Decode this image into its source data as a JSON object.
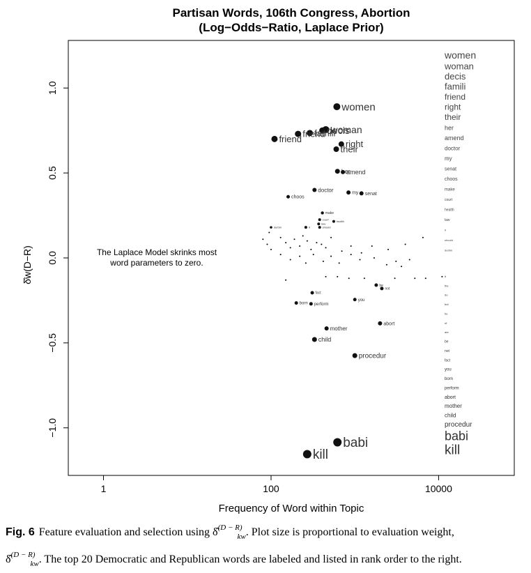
{
  "chart_data": {
    "type": "scatter",
    "title_line1": "Partisan Words, 106th Congress,  Abortion",
    "title_line2": "(Log−Odds−Ratio, Laplace Prior)",
    "xlabel": "Frequency of Word within Topic",
    "ylabel": "δ̂w(D−R)",
    "x_scale": "log",
    "x_ticks": [
      1,
      100,
      10000
    ],
    "x_tick_labels": [
      "1",
      "100",
      "10000"
    ],
    "y_ticks": [
      1.0,
      0.5,
      0.0,
      -0.5,
      -1.0
    ],
    "y_tick_labels": [
      "1.0",
      "0.5",
      "0.0",
      "−0.5",
      "−1.0"
    ],
    "xlim": [
      0.38,
      80000
    ],
    "ylim": [
      -1.28,
      1.28
    ],
    "annotation": [
      "The Laplace Model skrinks most",
      "word parameters to zero."
    ],
    "points": [
      {
        "word": "women",
        "x": 610,
        "y": 0.89,
        "size": 5,
        "font": 15
      },
      {
        "word": "woman",
        "x": 450,
        "y": 0.755,
        "size": 5,
        "font": 14
      },
      {
        "word": "decis",
        "x": 410,
        "y": 0.75,
        "size": 4.5,
        "font": 14
      },
      {
        "word": "famili",
        "x": 290,
        "y": 0.735,
        "size": 4.5,
        "font": 13
      },
      {
        "word": "friend",
        "x": 210,
        "y": 0.73,
        "size": 4.5,
        "font": 13
      },
      {
        "word": "friend",
        "x": 110,
        "y": 0.7,
        "size": 4.5,
        "font": 13
      },
      {
        "word": "right",
        "x": 690,
        "y": 0.67,
        "size": 4,
        "font": 13
      },
      {
        "word": "their",
        "x": 600,
        "y": 0.64,
        "size": 4,
        "font": 13
      },
      {
        "word": "her",
        "x": 620,
        "y": 0.51,
        "size": 3.5,
        "font": 9
      },
      {
        "word": "amend",
        "x": 720,
        "y": 0.505,
        "size": 3,
        "font": 9
      },
      {
        "word": "doctor",
        "x": 330,
        "y": 0.4,
        "size": 3,
        "font": 8
      },
      {
        "word": "my",
        "x": 840,
        "y": 0.385,
        "size": 3,
        "font": 7
      },
      {
        "word": "senat",
        "x": 1200,
        "y": 0.38,
        "size": 3,
        "font": 7
      },
      {
        "word": "choos",
        "x": 160,
        "y": 0.36,
        "size": 2.5,
        "font": 7
      },
      {
        "word": "make",
        "x": 410,
        "y": 0.265,
        "size": 2.2,
        "font": 5
      },
      {
        "word": "court",
        "x": 380,
        "y": 0.225,
        "size": 2,
        "font": 4
      },
      {
        "word": "health",
        "x": 560,
        "y": 0.215,
        "size": 2,
        "font": 4
      },
      {
        "word": "law",
        "x": 370,
        "y": 0.2,
        "size": 2,
        "font": 4
      },
      {
        "word": "it",
        "x": 260,
        "y": 0.18,
        "size": 2,
        "font": 4
      },
      {
        "word": "should",
        "x": 380,
        "y": 0.18,
        "size": 2,
        "font": 4
      },
      {
        "word": "durbin",
        "x": 100,
        "y": 0.18,
        "size": 1.8,
        "font": 4
      },
      {
        "word": "be",
        "x": 1800,
        "y": -0.16,
        "size": 2.5,
        "font": 5
      },
      {
        "word": "not",
        "x": 2100,
        "y": -0.18,
        "size": 2.5,
        "font": 5
      },
      {
        "word": "fact",
        "x": 310,
        "y": -0.205,
        "size": 2.5,
        "font": 5
      },
      {
        "word": "you",
        "x": 1000,
        "y": -0.245,
        "size": 2.5,
        "font": 6
      },
      {
        "word": "born",
        "x": 200,
        "y": -0.265,
        "size": 2.5,
        "font": 6
      },
      {
        "word": "perform",
        "x": 300,
        "y": -0.27,
        "size": 2.5,
        "font": 6
      },
      {
        "word": "abort",
        "x": 2000,
        "y": -0.385,
        "size": 3,
        "font": 7
      },
      {
        "word": "mother",
        "x": 460,
        "y": -0.415,
        "size": 3,
        "font": 8
      },
      {
        "word": "child",
        "x": 330,
        "y": -0.48,
        "size": 3.5,
        "font": 9
      },
      {
        "word": "procedur",
        "x": 1000,
        "y": -0.575,
        "size": 3.5,
        "font": 10
      },
      {
        "word": "babi",
        "x": 620,
        "y": -1.085,
        "size": 6,
        "font": 19
      },
      {
        "word": "kill",
        "x": 270,
        "y": -1.155,
        "size": 6,
        "font": 19
      }
    ],
    "small_points": [
      [
        80,
        0.11
      ],
      [
        90,
        0.08
      ],
      [
        95,
        0.15
      ],
      [
        100,
        0.05
      ],
      [
        130,
        0.12
      ],
      [
        150,
        0.09
      ],
      [
        170,
        0.06
      ],
      [
        190,
        0.11
      ],
      [
        220,
        0.07
      ],
      [
        240,
        0.13
      ],
      [
        270,
        0.1
      ],
      [
        300,
        0.05
      ],
      [
        350,
        0.09
      ],
      [
        400,
        0.08
      ],
      [
        450,
        0.06
      ],
      [
        520,
        0.12
      ],
      [
        700,
        0.04
      ],
      [
        900,
        0.07
      ],
      [
        1200,
        0.03
      ],
      [
        1600,
        0.07
      ],
      [
        2500,
        0.05
      ],
      [
        4000,
        0.08
      ],
      [
        6500,
        0.12
      ],
      [
        130,
        0.02
      ],
      [
        170,
        -0.01
      ],
      [
        220,
        0.01
      ],
      [
        260,
        -0.03
      ],
      [
        320,
        0.02
      ],
      [
        420,
        -0.02
      ],
      [
        520,
        0.01
      ],
      [
        650,
        -0.03
      ],
      [
        900,
        0.02
      ],
      [
        1150,
        -0.01
      ],
      [
        1700,
        0.0
      ],
      [
        2400,
        -0.04
      ],
      [
        3100,
        -0.02
      ],
      [
        3600,
        -0.05
      ],
      [
        4500,
        -0.01
      ],
      [
        150,
        -0.13
      ],
      [
        450,
        -0.11
      ],
      [
        620,
        -0.11
      ],
      [
        850,
        -0.12
      ],
      [
        1300,
        -0.12
      ],
      [
        5200,
        -0.12
      ],
      [
        7000,
        -0.12
      ],
      [
        11000,
        -0.11
      ],
      [
        3000,
        -0.12
      ]
    ],
    "rank_list": {
      "dem": [
        "women",
        "woman",
        "decis",
        "famili",
        "friend",
        "right",
        "their",
        "her",
        "amend",
        "doctor",
        "my",
        "senat",
        "choos",
        "make",
        "court",
        "health",
        "law",
        "it",
        "should",
        "durbin"
      ],
      "dem_sizes": [
        14,
        13,
        13,
        13,
        12,
        12,
        12,
        9,
        9,
        8,
        8,
        7,
        7,
        6,
        5,
        5,
        5,
        4,
        4,
        4
      ],
      "rep": [
        "it",
        "the",
        "do",
        "but",
        "he",
        "of",
        "are",
        "be",
        "not",
        "fact",
        "you",
        "born",
        "perform",
        "abort",
        "mother",
        "child",
        "procedur",
        "babi",
        "kill"
      ],
      "rep_sizes": [
        4,
        4,
        4,
        4,
        4,
        4,
        4,
        5,
        5,
        5,
        6,
        6,
        6,
        7,
        8,
        8,
        10,
        18,
        19
      ]
    }
  },
  "caption": {
    "fig_label": "Fig. 6",
    "part1": "Feature evaluation and selection using ",
    "part2": ". Plot size is proportional to evaluation weight,",
    "part3": ". The top 20 Democratic and Republican words are labeled and listed in rank order to the right.",
    "delta_symbol": "δ̂",
    "delta_sup": "(D − R)",
    "delta_sub": "kw"
  }
}
